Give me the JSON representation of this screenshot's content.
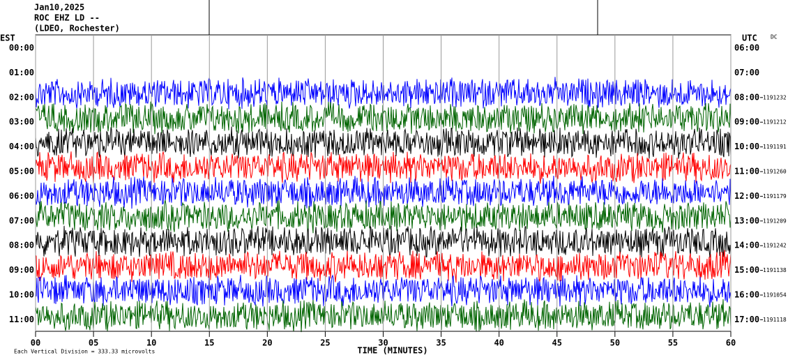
{
  "chart_data": {
    "type": "helicorder",
    "title_lines": [
      "Jan10,2025",
      "ROC EHZ LD --",
      "(LDEO, Rochester)"
    ],
    "left_axis_title": "EST",
    "right_axis_title": "UTC",
    "dc_title": "DC",
    "est_labels": [
      "00:00",
      "01:00",
      "02:00",
      "03:00",
      "04:00",
      "05:00",
      "06:00",
      "07:00",
      "08:00",
      "09:00",
      "10:00",
      "11:00"
    ],
    "utc_labels": [
      "06:00",
      "07:00",
      "08:00",
      "09:00",
      "10:00",
      "11:00",
      "12:00",
      "13:00",
      "14:00",
      "15:00",
      "16:00",
      "17:00"
    ],
    "dc_values": [
      null,
      null,
      1191232,
      1191212,
      1191191,
      1191260,
      1191179,
      1191209,
      1191242,
      1191138,
      1191054,
      1191118
    ],
    "xlabel": "TIME (MINUTES)",
    "xlim": [
      0,
      60
    ],
    "xticks": [
      {
        "value": 0,
        "label": "00"
      },
      {
        "value": 5,
        "label": "05"
      },
      10,
      15,
      20,
      25,
      30,
      35,
      40,
      45,
      50,
      55,
      60
    ],
    "grid": true,
    "trace_colors": [
      "#0000ff",
      "#006400",
      "#000000",
      "#ff0000"
    ],
    "footer": "Each Vertical Division =  333.33 microvolts"
  }
}
